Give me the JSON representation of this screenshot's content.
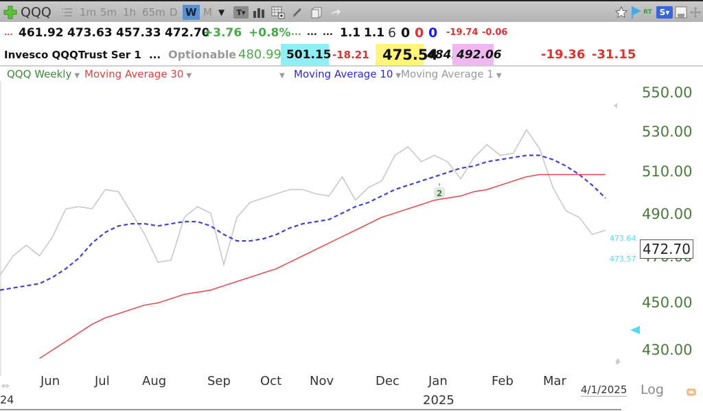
{
  "toolbar": {
    "symbol": "QQQ",
    "intervals": [
      "1m",
      "5m",
      "1h",
      "65m",
      "D",
      "W",
      "M"
    ],
    "active_interval": "W",
    "icons": [
      "add-symbol-icon",
      "list-icon",
      "dropdown-icon",
      "text-tool-icon",
      "bar-chart-icon",
      "grid-add-icon",
      "pencil-icon",
      "folder-icon",
      "share-icon",
      "star-icon",
      "flag-icon",
      "realtime-icon",
      "scan-icon",
      "save-icon",
      "move-icon"
    ],
    "rt_label": "RT",
    "s_label": "S▾"
  },
  "quote": {
    "row1": {
      "prefix": "...",
      "open": "461.92",
      "high": "473.63",
      "low": "457.33",
      "close": "472.70",
      "change": "+3.76",
      "change_pct": "+0.8%",
      "dots_green": "...",
      "dots1": "...",
      "dots2": "...",
      "v1": "1.1",
      "v2": "1.1",
      "v3": "6",
      "v4": "0",
      "v5": "0",
      "v6": "0",
      "v7": "-19.74",
      "v8": "-0.06"
    },
    "row2": {
      "name": "Invesco QQQTrust Ser 1",
      "dots": "...",
      "optionable": "Optionable",
      "v1": "480.99",
      "v2": "501.15",
      "v3": "-18.21",
      "v4": "475.54",
      "v5": "484.74",
      "v6": "492.06",
      "v7": "-19.36",
      "v8": "-31.15"
    },
    "colors": {
      "cyan_bg": "#8ef0f7",
      "yellow_bg": "#fff57a",
      "pink_bg": "#f0b8f0",
      "green": "#3fae3f",
      "red": "#e03030",
      "blue": "#1a1aff"
    }
  },
  "legend": {
    "series_name": "QQQ Weekly",
    "ma30": "Moving Average 30",
    "ma10": "Moving Average 10",
    "ma1": "Moving Average 1"
  },
  "chart_data": {
    "type": "line",
    "title": "QQQ Weekly",
    "xlabel": "",
    "ylabel": "",
    "ylim": [
      420,
      555
    ],
    "y_ticks": [
      "550.00",
      "530.00",
      "510.00",
      "490.00",
      "470.00",
      "450.00",
      "430.00"
    ],
    "x_ticks": [
      "Jun",
      "Jul",
      "Aug",
      "Sep",
      "Oct",
      "Nov",
      "Dec",
      "Jan",
      "Feb",
      "Mar"
    ],
    "x_sublabels": [
      "24",
      "2025"
    ],
    "date_label": "4/1/2025",
    "scale_label": "Log",
    "last_price": "472.70",
    "cyan_labels": [
      "473.64",
      "473.57"
    ],
    "annotation": "2",
    "grid": false,
    "series": [
      {
        "name": "Moving Average 1 (Weekly Close)",
        "color": "#c8c8c8",
        "style": "solid",
        "values": [
          465,
          474,
          479,
          474,
          483,
          496,
          497,
          496,
          505,
          504,
          494,
          484,
          471,
          472,
          492,
          497,
          494,
          470,
          492,
          499,
          501,
          503,
          505,
          505,
          503,
          502,
          511,
          500,
          506,
          509,
          521,
          525,
          518,
          521,
          518,
          510,
          520,
          526,
          521,
          522,
          533,
          524,
          506,
          495,
          492,
          484,
          486
        ]
      },
      {
        "name": "Moving Average 10",
        "color": "#4040d8",
        "style": "dashed",
        "values": [
          458,
          459,
          460,
          461,
          464,
          468,
          473,
          480,
          485,
          488,
          489,
          489,
          488,
          489,
          490,
          490,
          488,
          484,
          481,
          481,
          482,
          484,
          487,
          489,
          490,
          491,
          494,
          497,
          499,
          502,
          505,
          507,
          509,
          511,
          513,
          515,
          516,
          518,
          519,
          520,
          521,
          521,
          519,
          516,
          512,
          507,
          501
        ]
      },
      {
        "name": "Moving Average 30",
        "color": "#e05050",
        "style": "solid",
        "values": [
          null,
          null,
          null,
          426,
          430,
          434,
          438,
          442,
          445,
          447,
          449,
          451,
          452,
          454,
          456,
          457,
          458,
          460,
          462,
          464,
          466,
          468,
          471,
          474,
          477,
          480,
          483,
          486,
          489,
          492,
          494,
          496,
          498,
          500,
          501,
          502,
          504,
          505,
          507,
          509,
          511,
          512,
          512,
          512,
          512,
          512,
          512
        ]
      }
    ]
  }
}
